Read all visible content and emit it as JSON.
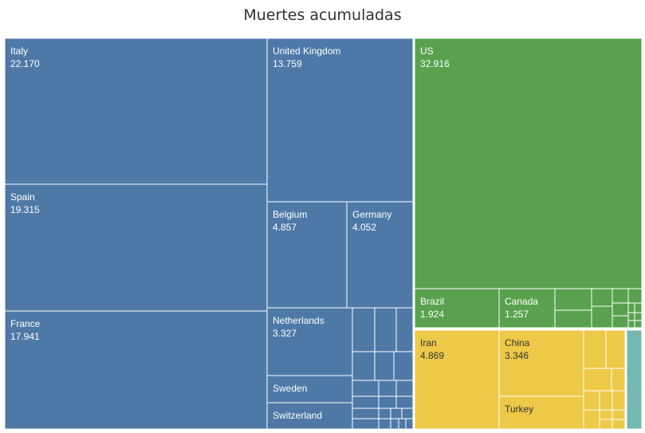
{
  "chart_data": {
    "type": "treemap",
    "title": "Muertes acumuladas",
    "colors": {
      "europe": "#4e79a7",
      "americas": "#59a14f",
      "asia": "#edc948",
      "other": "#76b7b2",
      "border": "#ffffff"
    },
    "groups": [
      {
        "name": "",
        "color_key": "europe",
        "items": [
          {
            "name": "Italy",
            "value": "22.170"
          },
          {
            "name": "Spain",
            "value": "19.315"
          },
          {
            "name": "France",
            "value": "17.941"
          },
          {
            "name": "United Kingdom",
            "value": "13.759"
          },
          {
            "name": "Belgium",
            "value": "4.857"
          },
          {
            "name": "Germany",
            "value": "4.052"
          },
          {
            "name": "Netherlands",
            "value": "3.327"
          },
          {
            "name": "Sweden",
            "value": ""
          },
          {
            "name": "Switzerland",
            "value": ""
          }
        ]
      },
      {
        "name": "",
        "color_key": "americas",
        "items": [
          {
            "name": "US",
            "value": "32.916"
          },
          {
            "name": "Brazil",
            "value": "1.924"
          },
          {
            "name": "Canada",
            "value": "1.257"
          }
        ]
      },
      {
        "name": "",
        "color_key": "asia",
        "items": [
          {
            "name": "Iran",
            "value": "4.869"
          },
          {
            "name": "China",
            "value": "3.346"
          },
          {
            "name": "Turkey",
            "value": ""
          }
        ]
      }
    ]
  }
}
